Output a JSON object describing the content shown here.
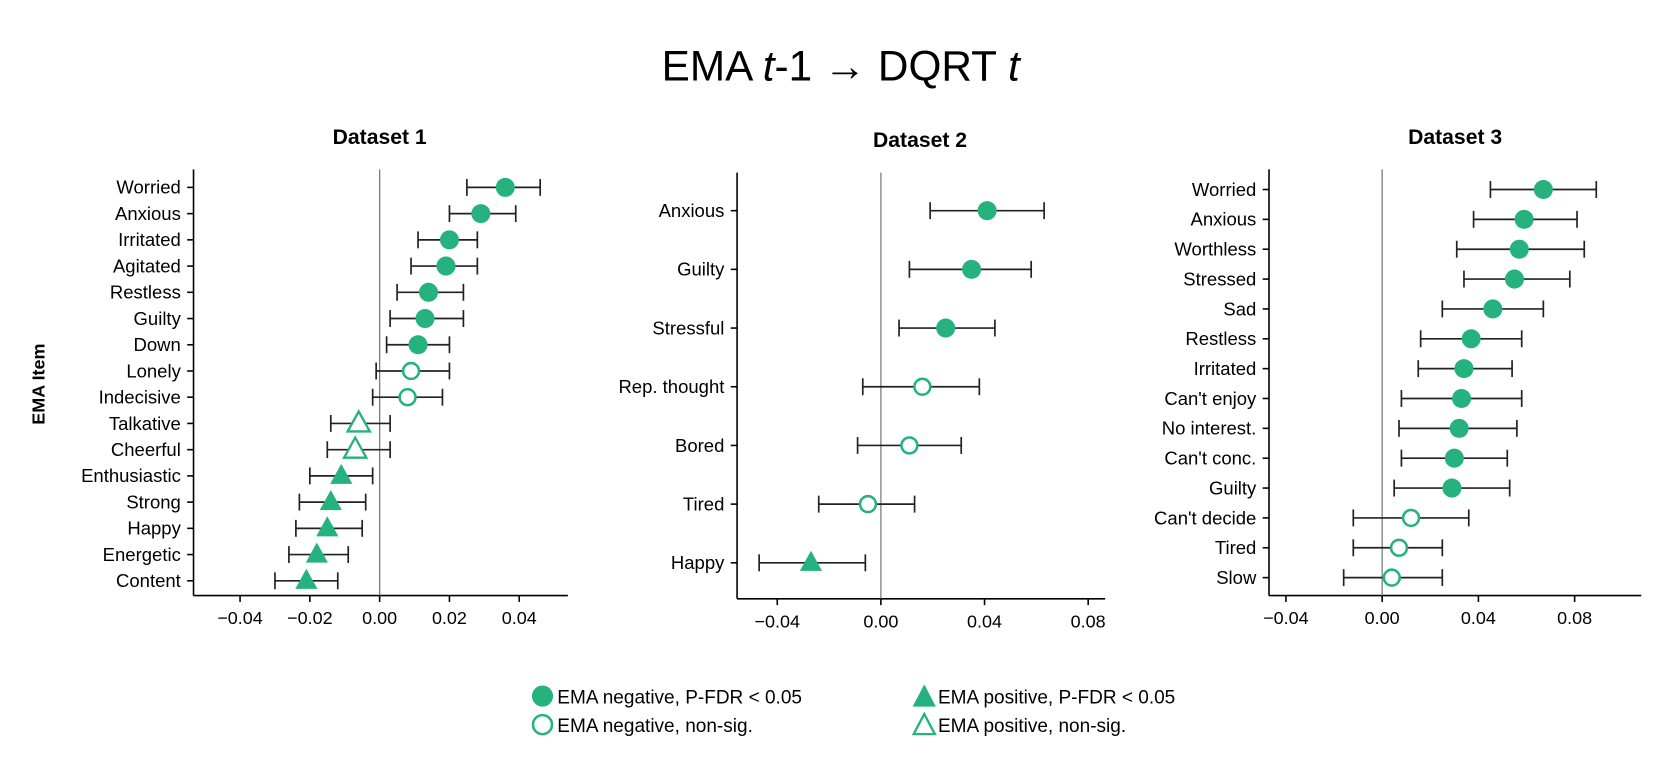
{
  "colors": {
    "marker": "#26b27f",
    "error_bar": "#222222",
    "zero_line": "#7a7a7a"
  },
  "figure": {
    "title_parts": {
      "a": "EMA ",
      "b": "t",
      "c": "-1 → DQRT ",
      "d": "t"
    }
  },
  "legend": {
    "items": [
      {
        "label": "EMA negative, P-FDR < 0.05",
        "marker": "filled-circle"
      },
      {
        "label": "EMA positive, P-FDR < 0.05",
        "marker": "filled-triangle"
      },
      {
        "label": "EMA negative, non-sig.",
        "marker": "open-circle"
      },
      {
        "label": "EMA positive, non-sig.",
        "marker": "open-triangle"
      }
    ]
  },
  "chart_data": [
    {
      "type": "scatter",
      "subtype": "forest-plot",
      "title": "Dataset 1",
      "xlabel": "",
      "ylabel": "EMA Item",
      "xlim": [
        -0.055,
        0.055
      ],
      "xticks": [
        -0.04,
        -0.02,
        0.0,
        0.02,
        0.04
      ],
      "xtick_labels": [
        "−0.04",
        "−0.02",
        "0.00",
        "0.02",
        "0.04"
      ],
      "reference_line": 0.0,
      "grid": false,
      "points": [
        {
          "item": "Worried",
          "estimate": 0.036,
          "ci_low": 0.025,
          "ci_high": 0.046,
          "valence": "negative",
          "significant": true
        },
        {
          "item": "Anxious",
          "estimate": 0.029,
          "ci_low": 0.02,
          "ci_high": 0.039,
          "valence": "negative",
          "significant": true
        },
        {
          "item": "Irritated",
          "estimate": 0.02,
          "ci_low": 0.011,
          "ci_high": 0.028,
          "valence": "negative",
          "significant": true
        },
        {
          "item": "Agitated",
          "estimate": 0.019,
          "ci_low": 0.009,
          "ci_high": 0.028,
          "valence": "negative",
          "significant": true
        },
        {
          "item": "Restless",
          "estimate": 0.014,
          "ci_low": 0.005,
          "ci_high": 0.024,
          "valence": "negative",
          "significant": true
        },
        {
          "item": "Guilty",
          "estimate": 0.013,
          "ci_low": 0.003,
          "ci_high": 0.024,
          "valence": "negative",
          "significant": true
        },
        {
          "item": "Down",
          "estimate": 0.011,
          "ci_low": 0.002,
          "ci_high": 0.02,
          "valence": "negative",
          "significant": true
        },
        {
          "item": "Lonely",
          "estimate": 0.009,
          "ci_low": -0.001,
          "ci_high": 0.02,
          "valence": "negative",
          "significant": false
        },
        {
          "item": "Indecisive",
          "estimate": 0.008,
          "ci_low": -0.002,
          "ci_high": 0.018,
          "valence": "negative",
          "significant": false
        },
        {
          "item": "Talkative",
          "estimate": -0.006,
          "ci_low": -0.014,
          "ci_high": 0.003,
          "valence": "positive",
          "significant": false
        },
        {
          "item": "Cheerful",
          "estimate": -0.007,
          "ci_low": -0.015,
          "ci_high": 0.003,
          "valence": "positive",
          "significant": false
        },
        {
          "item": "Enthusiastic",
          "estimate": -0.011,
          "ci_low": -0.02,
          "ci_high": -0.002,
          "valence": "positive",
          "significant": true
        },
        {
          "item": "Strong",
          "estimate": -0.014,
          "ci_low": -0.023,
          "ci_high": -0.004,
          "valence": "positive",
          "significant": true
        },
        {
          "item": "Happy",
          "estimate": -0.015,
          "ci_low": -0.024,
          "ci_high": -0.005,
          "valence": "positive",
          "significant": true
        },
        {
          "item": "Energetic",
          "estimate": -0.018,
          "ci_low": -0.026,
          "ci_high": -0.009,
          "valence": "positive",
          "significant": true
        },
        {
          "item": "Content",
          "estimate": -0.021,
          "ci_low": -0.03,
          "ci_high": -0.012,
          "valence": "positive",
          "significant": true
        }
      ]
    },
    {
      "type": "scatter",
      "subtype": "forest-plot",
      "title": "Dataset 2",
      "xlabel": "",
      "ylabel": "",
      "xlim": [
        -0.055,
        0.086
      ],
      "xticks": [
        -0.04,
        0.0,
        0.04,
        0.08
      ],
      "xtick_labels": [
        "−0.04",
        "0.00",
        "0.04",
        "0.08"
      ],
      "reference_line": 0.0,
      "grid": false,
      "points": [
        {
          "item": "Anxious",
          "estimate": 0.041,
          "ci_low": 0.019,
          "ci_high": 0.063,
          "valence": "negative",
          "significant": true
        },
        {
          "item": "Guilty",
          "estimate": 0.035,
          "ci_low": 0.011,
          "ci_high": 0.058,
          "valence": "negative",
          "significant": true
        },
        {
          "item": "Stressful",
          "estimate": 0.025,
          "ci_low": 0.007,
          "ci_high": 0.044,
          "valence": "negative",
          "significant": true
        },
        {
          "item": "Rep. thought",
          "estimate": 0.016,
          "ci_low": -0.007,
          "ci_high": 0.038,
          "valence": "negative",
          "significant": false
        },
        {
          "item": "Bored",
          "estimate": 0.011,
          "ci_low": -0.009,
          "ci_high": 0.031,
          "valence": "negative",
          "significant": false
        },
        {
          "item": "Tired",
          "estimate": -0.005,
          "ci_low": -0.024,
          "ci_high": 0.013,
          "valence": "negative",
          "significant": false
        },
        {
          "item": "Happy",
          "estimate": -0.027,
          "ci_low": -0.047,
          "ci_high": -0.006,
          "valence": "positive",
          "significant": true
        }
      ]
    },
    {
      "type": "scatter",
      "subtype": "forest-plot",
      "title": "Dataset 3",
      "xlabel": "",
      "ylabel": "",
      "xlim": [
        -0.05,
        0.102
      ],
      "xticks": [
        -0.04,
        0.0,
        0.04,
        0.08
      ],
      "xtick_labels": [
        "−0.04",
        "0.00",
        "0.04",
        "0.08"
      ],
      "reference_line": 0.0,
      "grid": false,
      "points": [
        {
          "item": "Worried",
          "estimate": 0.067,
          "ci_low": 0.045,
          "ci_high": 0.089,
          "valence": "negative",
          "significant": true
        },
        {
          "item": "Anxious",
          "estimate": 0.059,
          "ci_low": 0.038,
          "ci_high": 0.081,
          "valence": "negative",
          "significant": true
        },
        {
          "item": "Worthless",
          "estimate": 0.057,
          "ci_low": 0.031,
          "ci_high": 0.084,
          "valence": "negative",
          "significant": true
        },
        {
          "item": "Stressed",
          "estimate": 0.055,
          "ci_low": 0.034,
          "ci_high": 0.078,
          "valence": "negative",
          "significant": true
        },
        {
          "item": "Sad",
          "estimate": 0.046,
          "ci_low": 0.025,
          "ci_high": 0.067,
          "valence": "negative",
          "significant": true
        },
        {
          "item": "Restless",
          "estimate": 0.037,
          "ci_low": 0.016,
          "ci_high": 0.058,
          "valence": "negative",
          "significant": true
        },
        {
          "item": "Irritated",
          "estimate": 0.034,
          "ci_low": 0.015,
          "ci_high": 0.054,
          "valence": "negative",
          "significant": true
        },
        {
          "item": "Can't enjoy",
          "estimate": 0.033,
          "ci_low": 0.008,
          "ci_high": 0.058,
          "valence": "negative",
          "significant": true
        },
        {
          "item": "No interest.",
          "estimate": 0.032,
          "ci_low": 0.007,
          "ci_high": 0.056,
          "valence": "negative",
          "significant": true
        },
        {
          "item": "Can't conc.",
          "estimate": 0.03,
          "ci_low": 0.008,
          "ci_high": 0.052,
          "valence": "negative",
          "significant": true
        },
        {
          "item": "Guilty",
          "estimate": 0.029,
          "ci_low": 0.005,
          "ci_high": 0.053,
          "valence": "negative",
          "significant": true
        },
        {
          "item": "Can't decide",
          "estimate": 0.012,
          "ci_low": -0.012,
          "ci_high": 0.036,
          "valence": "negative",
          "significant": false
        },
        {
          "item": "Tired",
          "estimate": 0.007,
          "ci_low": -0.012,
          "ci_high": 0.025,
          "valence": "negative",
          "significant": false
        },
        {
          "item": "Slow",
          "estimate": 0.004,
          "ci_low": -0.016,
          "ci_high": 0.025,
          "valence": "negative",
          "significant": false
        }
      ]
    }
  ]
}
